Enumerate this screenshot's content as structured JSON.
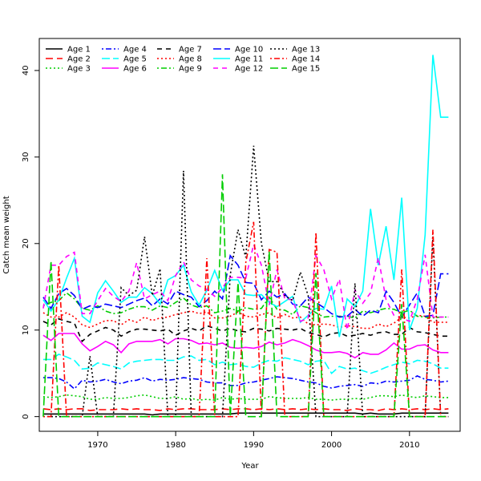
{
  "chart_data": {
    "type": "line",
    "title": "",
    "xlabel": "Year",
    "ylabel": "Catch mean weight",
    "xlim": [
      1962.5,
      2016.5
    ],
    "ylim": [
      -1.7,
      43.7
    ],
    "xticks": [
      1970,
      1980,
      1990,
      2000,
      2010
    ],
    "yticks": [
      0,
      10,
      20,
      30,
      40
    ],
    "grid": false,
    "legend": "top-left, 5 columns of 3",
    "x": [
      1963,
      1964,
      1965,
      1966,
      1967,
      1968,
      1969,
      1970,
      1971,
      1972,
      1973,
      1974,
      1975,
      1976,
      1977,
      1978,
      1979,
      1980,
      1981,
      1982,
      1983,
      1984,
      1985,
      1986,
      1987,
      1988,
      1989,
      1990,
      1991,
      1992,
      1993,
      1994,
      1995,
      1996,
      1997,
      1998,
      1999,
      2000,
      2001,
      2002,
      2003,
      2004,
      2005,
      2006,
      2007,
      2008,
      2009,
      2010,
      2011,
      2012,
      2013,
      2014,
      2015
    ],
    "series": [
      {
        "name": "Age 1",
        "color": "#000000",
        "dash": "solid",
        "values": [
          0.3,
          0.3,
          0.3,
          0.3,
          0.3,
          0.3,
          0.3,
          0.3,
          0.3,
          0.3,
          0.3,
          0.3,
          0.3,
          0.3,
          0.2,
          0.3,
          0.3,
          0.3,
          0.3,
          0.3,
          0.3,
          0.3,
          0.3,
          0.3,
          0.3,
          0.4,
          0.4,
          0.4,
          0.4,
          0.4,
          0.4,
          0.4,
          0.4,
          0.4,
          0.4,
          0.4,
          0.4,
          0.4,
          0.4,
          0.4,
          0.4,
          0.3,
          0.4,
          0.3,
          0.3,
          0.3,
          0.4,
          0.4,
          0.4,
          0.4,
          0.4,
          0.4,
          0.4
        ]
      },
      {
        "name": "Age 2",
        "color": "#ff0000",
        "dash": "long",
        "values": [
          0.9,
          0.8,
          0.9,
          0.8,
          0.9,
          0.9,
          0.7,
          0.8,
          0.8,
          0.8,
          0.9,
          0.8,
          0.9,
          0.8,
          0.8,
          0.7,
          0.9,
          0.8,
          0.9,
          0.9,
          0.8,
          0.8,
          0.8,
          0.9,
          0.8,
          0.9,
          0.9,
          0.8,
          0.9,
          0.8,
          0.9,
          0.8,
          0.9,
          0.8,
          0.9,
          0.8,
          0.9,
          0.8,
          0.8,
          0.7,
          0.9,
          0.8,
          0.8,
          0.7,
          0.9,
          0.8,
          0.9,
          0.8,
          0.9,
          0.8,
          0.9,
          0.8,
          0.9
        ]
      },
      {
        "name": "Age 3",
        "color": "#00cd00",
        "dash": "dotted",
        "values": [
          2.3,
          2.2,
          2.3,
          2.5,
          2.4,
          2.3,
          2.0,
          2.0,
          2.2,
          2.1,
          2.1,
          2.2,
          2.4,
          2.5,
          2.3,
          2.1,
          2.1,
          2.3,
          2.0,
          2.1,
          1.9,
          2.0,
          1.9,
          2.2,
          2.0,
          2.1,
          2.0,
          2.0,
          2.0,
          2.3,
          2.2,
          2.1,
          2.1,
          2.1,
          2.2,
          2.0,
          2.0,
          1.9,
          2.0,
          2.0,
          2.1,
          2.0,
          2.2,
          2.4,
          2.4,
          2.3,
          2.5,
          2.3,
          2.2,
          2.4,
          2.3,
          2.2,
          2.2
        ]
      },
      {
        "name": "Age 4",
        "color": "#0000ff",
        "dash": "dashdot",
        "values": [
          4.5,
          4.5,
          4.4,
          4.0,
          3.2,
          4.2,
          4.0,
          4.1,
          4.3,
          4.0,
          3.8,
          4.1,
          4.2,
          4.5,
          4.1,
          4.3,
          4.2,
          4.3,
          4.5,
          4.4,
          4.3,
          4.0,
          3.9,
          3.9,
          3.6,
          3.6,
          3.9,
          4.0,
          4.2,
          4.4,
          4.6,
          4.5,
          4.4,
          4.2,
          4.0,
          3.9,
          3.5,
          3.3,
          3.5,
          3.6,
          3.7,
          3.5,
          3.9,
          3.8,
          4.1,
          4.0,
          4.1,
          4.2,
          4.7,
          4.3,
          4.2,
          4.0,
          4.1
        ]
      },
      {
        "name": "Age 5",
        "color": "#00ffff",
        "dash": "longdash",
        "values": [
          6.6,
          6.6,
          7.2,
          6.9,
          6.5,
          5.5,
          5.6,
          6.2,
          6.0,
          5.8,
          5.5,
          6.2,
          6.4,
          6.5,
          6.6,
          6.6,
          6.5,
          6.5,
          6.9,
          7.0,
          6.5,
          6.6,
          6.0,
          6.3,
          6.0,
          6.1,
          5.8,
          5.7,
          6.2,
          6.5,
          6.4,
          6.8,
          6.6,
          6.4,
          6.0,
          6.4,
          6.5,
          5.0,
          5.8,
          5.5,
          5.6,
          5.3,
          5.0,
          5.3,
          5.7,
          6.0,
          6.3,
          6.1,
          6.5,
          6.4,
          6.1,
          5.6,
          5.6
        ]
      },
      {
        "name": "Age 6",
        "color": "#ff00ff",
        "dash": "solid",
        "values": [
          9.4,
          8.8,
          9.6,
          9.6,
          9.6,
          8.4,
          7.6,
          8.1,
          8.7,
          8.3,
          7.4,
          8.4,
          8.7,
          8.7,
          8.7,
          8.9,
          8.4,
          9.0,
          9.0,
          8.8,
          8.4,
          8.5,
          8.3,
          8.5,
          8.0,
          7.9,
          8.0,
          7.9,
          8.1,
          8.6,
          8.3,
          8.5,
          8.9,
          8.6,
          8.2,
          7.7,
          7.4,
          7.4,
          7.5,
          7.3,
          6.8,
          7.4,
          7.2,
          7.2,
          7.7,
          8.5,
          7.8,
          7.8,
          8.2,
          8.3,
          7.7,
          7.4,
          7.4
        ]
      },
      {
        "name": "Age 7",
        "color": "#000000",
        "dash": "dashed",
        "values": [
          11.0,
          10.6,
          11.3,
          11.0,
          10.8,
          8.7,
          9.5,
          9.9,
          10.3,
          10.0,
          9.3,
          9.8,
          10.1,
          10.1,
          10.0,
          9.9,
          10.1,
          9.4,
          9.9,
          10.2,
          9.9,
          10.5,
          10.2,
          9.9,
          10.2,
          9.9,
          9.8,
          10.2,
          10.1,
          9.9,
          10.2,
          10.1,
          10.0,
          10.2,
          9.7,
          9.5,
          9.2,
          9.6,
          9.7,
          9.3,
          9.4,
          9.6,
          9.4,
          9.7,
          9.8,
          9.5,
          9.5,
          10.3,
          9.8,
          9.7,
          9.5,
          9.3,
          9.3
        ]
      },
      {
        "name": "Age 8",
        "color": "#ff0000",
        "dash": "dotted",
        "values": [
          12.0,
          11.5,
          11.5,
          12.0,
          11.5,
          10.6,
          10.3,
          10.7,
          11.1,
          11.1,
          10.6,
          11.2,
          10.9,
          11.5,
          11.1,
          11.4,
          11.5,
          11.8,
          12.0,
          12.2,
          11.9,
          12.1,
          11.4,
          11.4,
          11.6,
          12.1,
          11.6,
          11.5,
          11.8,
          12.0,
          11.4,
          11.8,
          11.4,
          11.5,
          10.7,
          10.6,
          10.7,
          10.6,
          10.3,
          10.5,
          10.4,
          10.2,
          10.2,
          10.7,
          10.4,
          10.8,
          11.5,
          11.4,
          11.7,
          11.6,
          10.9,
          10.9,
          10.9
        ]
      },
      {
        "name": "Age 9",
        "color": "#00cd00",
        "dash": "dashdot",
        "values": [
          12.8,
          13.2,
          13.4,
          14.3,
          13.6,
          12.5,
          12.3,
          12.8,
          12.2,
          11.9,
          12.0,
          12.4,
          12.7,
          12.7,
          12.3,
          12.8,
          12.6,
          13.2,
          13.7,
          12.9,
          12.6,
          12.8,
          12.0,
          12.2,
          12.5,
          12.2,
          12.6,
          12.4,
          12.5,
          13.8,
          12.4,
          12.3,
          11.8,
          12.8,
          12.6,
          12.0,
          11.5,
          11.6,
          11.6,
          11.6,
          11.4,
          12.2,
          12.0,
          12.3,
          12.5,
          12.4,
          12.0,
          12.3,
          11.6,
          11.5,
          11.4,
          11.5,
          11.5
        ]
      },
      {
        "name": "Age 10",
        "color": "#0000ff",
        "dash": "longdash",
        "values": [
          13.8,
          12.5,
          14.2,
          14.8,
          14.0,
          12.4,
          12.8,
          12.6,
          13.0,
          12.8,
          12.6,
          13.0,
          13.4,
          13.7,
          12.8,
          13.6,
          13.0,
          14.5,
          14.1,
          13.8,
          12.7,
          13.4,
          14.5,
          13.6,
          18.6,
          17.5,
          15.5,
          15.4,
          13.5,
          14.5,
          13.8,
          14.2,
          13.0,
          12.8,
          13.8,
          13.2,
          12.6,
          11.9,
          11.5,
          11.6,
          12.4,
          11.6,
          12.3,
          12.0,
          14.5,
          13.2,
          11.5,
          12.9,
          14.3,
          11.6,
          11.7,
          16.5,
          16.5
        ]
      },
      {
        "name": "Age 11",
        "color": "#00ffff",
        "dash": "solid",
        "values": [
          13.5,
          12.2,
          13.5,
          16.0,
          18.3,
          11.6,
          10.9,
          14.3,
          15.7,
          14.5,
          13.2,
          13.8,
          13.8,
          14.9,
          14.2,
          13.0,
          15.8,
          16.3,
          17.5,
          14.4,
          12.9,
          14.6,
          16.9,
          14.6,
          15.8,
          15.8,
          14.1,
          14.0,
          14.1,
          13.2,
          12.7,
          13.3,
          13.9,
          10.9,
          11.7,
          12.5,
          12.4,
          15.1,
          9.2,
          13.6,
          12.7,
          14.5,
          24.0,
          17.5,
          22.0,
          15.8,
          25.3,
          10.0,
          12.5,
          21.0,
          41.8,
          34.6,
          34.6
        ]
      },
      {
        "name": "Age 12",
        "color": "#ff00ff",
        "dash": "dashed",
        "values": [
          12.5,
          17.5,
          17.5,
          18.5,
          19.0,
          11.9,
          11.9,
          13.4,
          14.8,
          13.9,
          13.3,
          14.5,
          17.8,
          13.6,
          14.1,
          14.5,
          13.4,
          16.3,
          17.9,
          15.8,
          15.1,
          14.7,
          13.9,
          14.9,
          16.1,
          16.1,
          16.0,
          19.9,
          17.5,
          12.9,
          17.0,
          13.6,
          13.5,
          11.0,
          11.4,
          18.6,
          17.0,
          13.6,
          15.9,
          10.0,
          14.6,
          13.1,
          14.3,
          18.4,
          13.5,
          11.7,
          11.4,
          11.0,
          13.6,
          18.7,
          11.5,
          11.5,
          11.5
        ]
      },
      {
        "name": "Age 13",
        "color": "#000000",
        "dash": "dotted",
        "values": [
          0.0,
          0.0,
          0.0,
          0.0,
          0.0,
          0.0,
          7.0,
          0.0,
          0.0,
          0.0,
          14.9,
          14.0,
          14.6,
          20.8,
          14.0,
          17.1,
          0.0,
          0.0,
          28.4,
          0.0,
          0.0,
          0.0,
          0.0,
          0.0,
          16.4,
          21.6,
          18.4,
          31.3,
          20.0,
          15.6,
          15.6,
          14.0,
          13.4,
          16.7,
          14.0,
          0.0,
          0.0,
          0.0,
          0.0,
          0.0,
          15.4,
          0.0,
          0.0,
          0.0,
          0.0,
          0.0,
          0.0,
          0.0,
          0.0,
          0.0,
          20.8,
          0.0,
          0.0
        ]
      },
      {
        "name": "Age 14",
        "color": "#ff0000",
        "dash": "dashdot",
        "values": [
          0.0,
          0.0,
          17.5,
          0.0,
          0.0,
          0.0,
          0.0,
          0.0,
          0.0,
          0.0,
          0.0,
          0.0,
          0.0,
          0.0,
          0.0,
          0.0,
          0.0,
          0.0,
          0.0,
          0.0,
          0.0,
          18.3,
          0.0,
          0.0,
          0.0,
          0.0,
          17.8,
          22.5,
          0.0,
          19.3,
          19.0,
          0.0,
          0.0,
          0.0,
          0.0,
          21.3,
          0.0,
          0.0,
          0.0,
          0.0,
          0.0,
          0.0,
          0.0,
          0.0,
          0.0,
          0.0,
          17.0,
          0.0,
          0.0,
          0.0,
          21.6,
          0.0,
          0.0
        ]
      },
      {
        "name": "Age 15",
        "color": "#00cd00",
        "dash": "longdash",
        "values": [
          0.0,
          18.0,
          0.0,
          0.0,
          0.0,
          0.0,
          0.0,
          0.0,
          0.0,
          0.0,
          0.0,
          0.0,
          0.0,
          0.0,
          0.0,
          0.0,
          0.0,
          0.0,
          0.0,
          0.0,
          0.0,
          0.0,
          0.0,
          28.0,
          0.0,
          15.5,
          0.0,
          0.0,
          0.0,
          19.1,
          0.0,
          0.0,
          0.0,
          0.0,
          0.0,
          16.6,
          0.0,
          0.0,
          0.0,
          0.0,
          0.0,
          0.0,
          0.0,
          0.0,
          0.0,
          0.0,
          13.0,
          0.0,
          0.0,
          0.0,
          0.0,
          0.0,
          0.0
        ]
      }
    ]
  }
}
